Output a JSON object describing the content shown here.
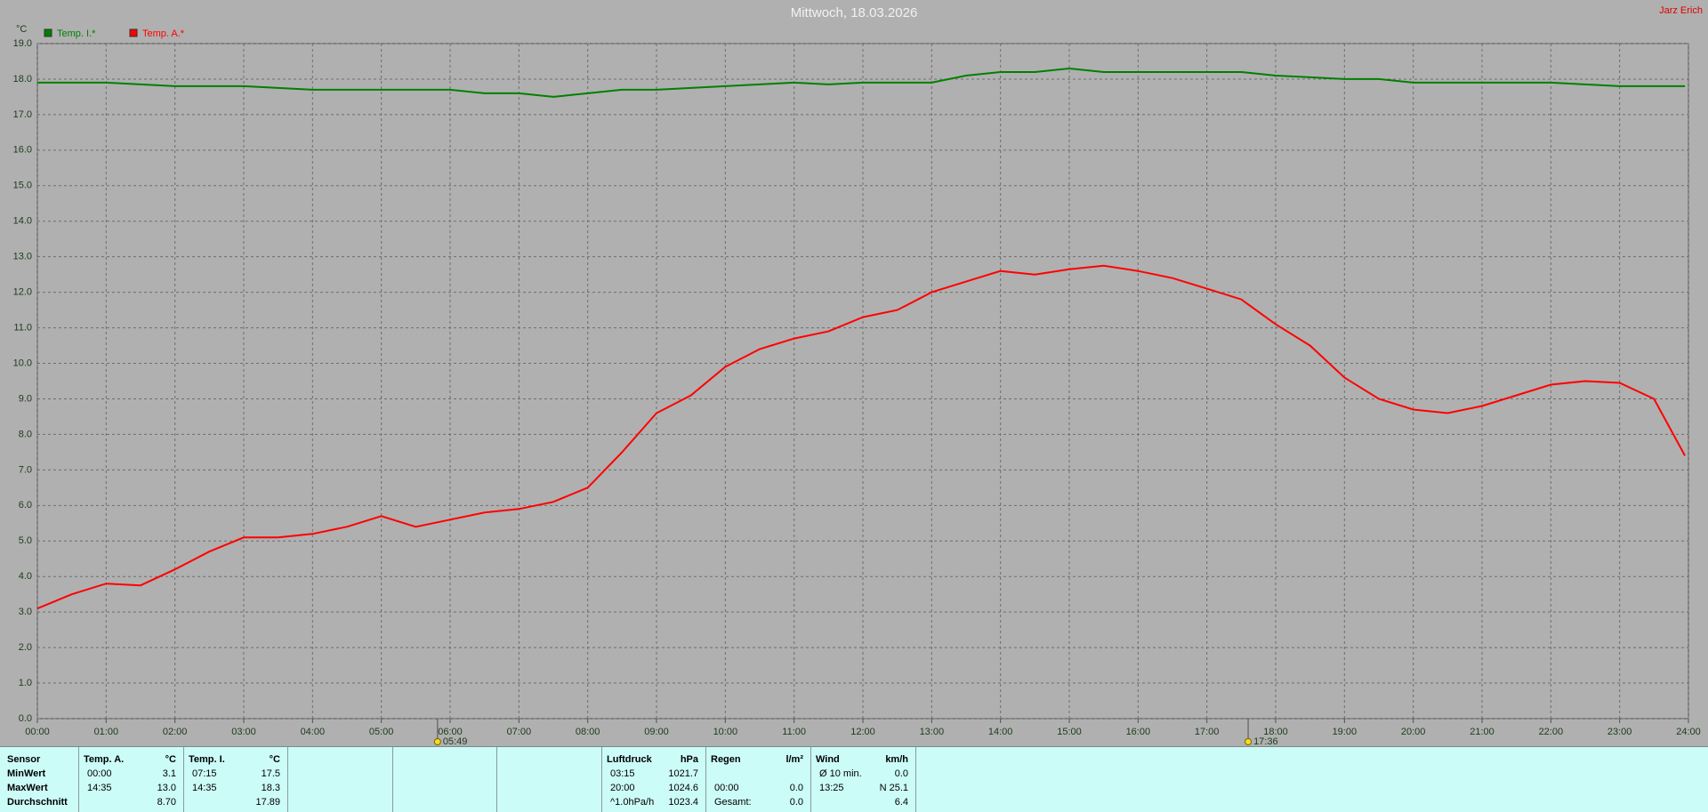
{
  "chart_data": {
    "type": "line",
    "title": "Mittwoch, 18.03.2026",
    "corner_label": "Jarz Erich",
    "y_label": "°C",
    "x": [
      0,
      0.5,
      1,
      1.5,
      2,
      2.5,
      3,
      3.5,
      4,
      4.5,
      5,
      5.5,
      6,
      6.5,
      7,
      7.5,
      8,
      8.5,
      9,
      9.5,
      10,
      10.5,
      11,
      11.5,
      12,
      12.5,
      13,
      13.5,
      14,
      14.5,
      15,
      15.5,
      16,
      16.5,
      17,
      17.5,
      18,
      18.5,
      19,
      19.5,
      20,
      20.5,
      21,
      21.5,
      22,
      22.5,
      23,
      23.5,
      23.95
    ],
    "series": [
      {
        "name": "Temp. I.*",
        "color": "#008000",
        "values": [
          17.9,
          17.9,
          17.9,
          17.85,
          17.8,
          17.8,
          17.8,
          17.75,
          17.7,
          17.7,
          17.7,
          17.7,
          17.7,
          17.6,
          17.6,
          17.5,
          17.6,
          17.7,
          17.7,
          17.75,
          17.8,
          17.85,
          17.9,
          17.85,
          17.9,
          17.9,
          17.9,
          18.1,
          18.2,
          18.2,
          18.3,
          18.2,
          18.2,
          18.2,
          18.2,
          18.2,
          18.1,
          18.05,
          18.0,
          18.0,
          17.9,
          17.9,
          17.9,
          17.9,
          17.9,
          17.85,
          17.8,
          17.8,
          17.8
        ]
      },
      {
        "name": "Temp. A.*",
        "color": "#ff0000",
        "values": [
          3.1,
          3.5,
          3.8,
          3.75,
          4.2,
          4.7,
          5.1,
          5.1,
          5.2,
          5.4,
          5.7,
          5.4,
          5.6,
          5.8,
          5.9,
          6.1,
          6.5,
          7.5,
          8.6,
          9.1,
          9.9,
          10.4,
          10.7,
          10.9,
          11.3,
          11.5,
          12.0,
          12.3,
          12.6,
          12.5,
          12.65,
          12.75,
          12.6,
          12.4,
          12.1,
          11.8,
          11.1,
          10.5,
          9.6,
          9.0,
          8.7,
          8.6,
          8.8,
          9.1,
          9.4,
          9.5,
          9.45,
          9.0,
          7.4
        ]
      }
    ],
    "xlim": [
      0,
      24
    ],
    "xticks": [
      {
        "value": 0,
        "label": "00:00"
      },
      {
        "value": 1,
        "label": "01:00"
      },
      {
        "value": 2,
        "label": "02:00"
      },
      {
        "value": 3,
        "label": "03:00"
      },
      {
        "value": 4,
        "label": "04:00"
      },
      {
        "value": 5,
        "label": "05:00"
      },
      {
        "value": 6,
        "label": "06:00"
      },
      {
        "value": 7,
        "label": "07:00"
      },
      {
        "value": 8,
        "label": "08:00"
      },
      {
        "value": 9,
        "label": "09:00"
      },
      {
        "value": 10,
        "label": "10:00"
      },
      {
        "value": 11,
        "label": "11:00"
      },
      {
        "value": 12,
        "label": "12:00"
      },
      {
        "value": 13,
        "label": "13:00"
      },
      {
        "value": 14,
        "label": "14:00"
      },
      {
        "value": 15,
        "label": "15:00"
      },
      {
        "value": 16,
        "label": "16:00"
      },
      {
        "value": 17,
        "label": "17:00"
      },
      {
        "value": 18,
        "label": "18:00"
      },
      {
        "value": 19,
        "label": "19:00"
      },
      {
        "value": 20,
        "label": "20:00"
      },
      {
        "value": 21,
        "label": "21:00"
      },
      {
        "value": 22,
        "label": "22:00"
      },
      {
        "value": 23,
        "label": "23:00"
      },
      {
        "value": 24,
        "label": "24:00"
      }
    ],
    "ylim": [
      0,
      19
    ],
    "yticks": [
      {
        "value": 0,
        "label": "0.0"
      },
      {
        "value": 1,
        "label": "1.0"
      },
      {
        "value": 2,
        "label": "2.0"
      },
      {
        "value": 3,
        "label": "3.0"
      },
      {
        "value": 4,
        "label": "4.0"
      },
      {
        "value": 5,
        "label": "5.0"
      },
      {
        "value": 6,
        "label": "6.0"
      },
      {
        "value": 7,
        "label": "7.0"
      },
      {
        "value": 8,
        "label": "8.0"
      },
      {
        "value": 9,
        "label": "9.0"
      },
      {
        "value": 10,
        "label": "10.0"
      },
      {
        "value": 11,
        "label": "11.0"
      },
      {
        "value": 12,
        "label": "12.0"
      },
      {
        "value": 13,
        "label": "13.0"
      },
      {
        "value": 14,
        "label": "14.0"
      },
      {
        "value": 15,
        "label": "15.0"
      },
      {
        "value": 16,
        "label": "16.0"
      },
      {
        "value": 17,
        "label": "17.0"
      },
      {
        "value": 18,
        "label": "18.0"
      },
      {
        "value": 19,
        "label": "19.0"
      }
    ],
    "grid": true,
    "annotations": [
      {
        "x": 5.8167,
        "label": "05:49"
      },
      {
        "x": 17.6,
        "label": "17:36"
      }
    ]
  },
  "table": {
    "sensor": {
      "header": "Sensor",
      "rows": [
        "MinWert",
        "MaxWert",
        "Durchschnitt"
      ]
    },
    "blocks": [
      {
        "name": "Temp. A.",
        "unit": "°C",
        "rows": [
          {
            "time": "00:00",
            "value": "3.1"
          },
          {
            "time": "14:35",
            "value": "13.0"
          },
          {
            "value": "8.70"
          }
        ]
      },
      {
        "name": "Temp. I.",
        "unit": "°C",
        "rows": [
          {
            "time": "07:15",
            "value": "17.5"
          },
          {
            "time": "14:35",
            "value": "18.3"
          },
          {
            "value": "17.89"
          }
        ]
      },
      {
        "name": "Luftdruck",
        "unit": "hPa",
        "rows": [
          {
            "time": "03:15",
            "value": "1021.7"
          },
          {
            "time": "20:00",
            "value": "1024.6"
          },
          {
            "time": "^1.0hPa/h",
            "value": "1023.4"
          }
        ]
      },
      {
        "name": "Regen",
        "unit": "l/m²",
        "rows": [
          null,
          {
            "time": "00:00",
            "value": "0.0"
          },
          {
            "time": "Gesamt:",
            "value": "0.0"
          }
        ]
      },
      {
        "name": "Wind",
        "unit": "km/h",
        "rows": [
          {
            "time": "Ø 10 min.",
            "value": "0.0"
          },
          {
            "time": "13:25",
            "value": "N 25.1"
          },
          {
            "value": "6.4"
          }
        ]
      }
    ]
  }
}
